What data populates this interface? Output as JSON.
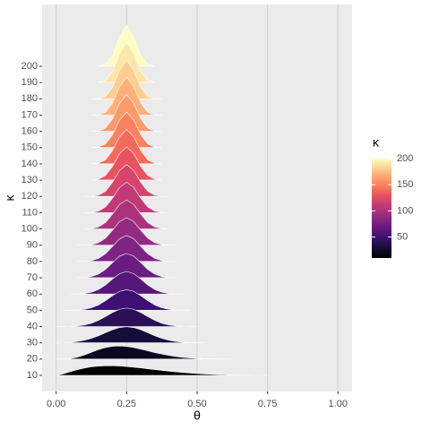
{
  "chart_data": {
    "type": "ridgeline",
    "x": [
      0,
      0.025,
      0.05,
      0.075,
      0.1,
      0.125,
      0.15,
      0.175,
      0.2,
      0.225,
      0.25,
      0.275,
      0.3,
      0.325,
      0.35,
      0.375,
      0.4,
      0.425,
      0.45,
      0.475,
      0.5,
      0.525,
      0.55,
      0.575,
      0.6,
      0.625,
      0.65,
      0.675,
      0.7,
      0.725,
      0.75,
      0.775,
      0.8,
      0.825,
      0.85
    ],
    "categories": [
      10,
      20,
      30,
      40,
      50,
      60,
      70,
      80,
      90,
      100,
      110,
      120,
      130,
      140,
      150,
      160,
      170,
      180,
      190,
      200
    ],
    "series": [
      {
        "color": "#000004",
        "values": [
          0,
          0.49,
          1.17,
          1.81,
          2.33,
          2.71,
          2.95,
          3.06,
          3.06,
          2.97,
          2.81,
          2.6,
          2.36,
          2.1,
          1.84,
          1.58,
          1.33,
          1.11,
          0.9,
          0.72,
          0.57,
          0.44,
          0.33,
          0.24,
          0.18,
          0.12,
          0.08,
          0.05,
          0.03,
          0.02,
          0.01,
          null,
          null,
          null,
          null
        ]
      },
      {
        "color": "#0a0720",
        "values": [
          0,
          0.02,
          0.18,
          0.62,
          1.33,
          2.19,
          3.02,
          3.69,
          4.09,
          4.2,
          4.05,
          3.68,
          3.19,
          2.65,
          2.09,
          1.6,
          1.17,
          0.82,
          0.55,
          0.36,
          0.22,
          0.13,
          0.07,
          0.04,
          0.02,
          0.01,
          null,
          null,
          null,
          null,
          null,
          null,
          null,
          null,
          null
        ]
      },
      {
        "color": "#150e38",
        "values": [
          0.03,
          0.08,
          0.19,
          0.41,
          0.8,
          1.41,
          2.24,
          3.22,
          4.17,
          4.87,
          5.13,
          4.87,
          4.17,
          3.22,
          2.24,
          1.41,
          0.8,
          0.41,
          0.19,
          0.08,
          0.03,
          0.01,
          null,
          null,
          null,
          null,
          null,
          null,
          null,
          null,
          null,
          null,
          null,
          null,
          null
        ]
      },
      {
        "color": "#2a1055",
        "values": [
          0.01,
          0.02,
          0.07,
          0.21,
          0.5,
          1.07,
          1.98,
          3.19,
          4.49,
          5.51,
          5.9,
          5.51,
          4.49,
          3.19,
          1.98,
          1.07,
          0.5,
          0.21,
          0.07,
          0.02,
          0.01,
          null,
          null,
          null,
          null,
          null,
          null,
          null,
          null,
          null,
          null,
          null,
          null,
          null,
          null
        ]
      },
      {
        "color": "#3e1072",
        "values": [
          null,
          0.01,
          0.03,
          0.1,
          0.31,
          0.79,
          1.69,
          3.06,
          4.68,
          6.04,
          6.58,
          6.04,
          4.68,
          3.06,
          1.69,
          0.79,
          0.31,
          0.1,
          0.03,
          0.01,
          null,
          null,
          null,
          null,
          null,
          null,
          null,
          null,
          null,
          null,
          null,
          null,
          null,
          null,
          null
        ]
      },
      {
        "color": "#551779",
        "values": [
          null,
          null,
          0.01,
          0.05,
          0.19,
          0.57,
          1.42,
          2.88,
          4.79,
          6.5,
          7.2,
          6.5,
          4.79,
          2.88,
          1.42,
          0.57,
          0.19,
          0.05,
          0.01,
          null,
          null,
          null,
          null,
          null,
          null,
          null,
          null,
          null,
          null,
          null,
          null,
          null,
          null,
          null,
          null
        ]
      },
      {
        "color": "#6a1c81",
        "values": [
          null,
          null,
          null,
          0.02,
          0.11,
          0.4,
          1.17,
          2.67,
          4.83,
          6.89,
          7.76,
          6.89,
          4.83,
          2.67,
          1.17,
          0.4,
          0.11,
          0.02,
          null,
          null,
          null,
          null,
          null,
          null,
          null,
          null,
          null,
          null,
          null,
          null,
          null,
          null,
          null,
          null,
          null
        ]
      },
      {
        "color": "#7e2482",
        "values": [
          null,
          null,
          null,
          0.01,
          0.06,
          0.28,
          0.96,
          2.46,
          4.83,
          7.24,
          8.29,
          7.24,
          4.83,
          2.46,
          0.96,
          0.28,
          0.06,
          0.01,
          null,
          null,
          null,
          null,
          null,
          null,
          null,
          null,
          null,
          null,
          null,
          null,
          null,
          null,
          null,
          null,
          null
        ]
      },
      {
        "color": "#922b80",
        "values": [
          null,
          null,
          null,
          0.01,
          0.04,
          0.2,
          0.78,
          2.24,
          4.79,
          7.55,
          8.79,
          7.55,
          4.79,
          2.24,
          0.78,
          0.2,
          0.04,
          0.01,
          null,
          null,
          null,
          null,
          null,
          null,
          null,
          null,
          null,
          null,
          null,
          null,
          null,
          null,
          null,
          null,
          null
        ]
      },
      {
        "color": "#ab337c",
        "values": [
          null,
          null,
          null,
          null,
          0.02,
          0.14,
          0.63,
          2.04,
          4.72,
          7.83,
          9.26,
          7.83,
          4.72,
          2.04,
          0.63,
          0.14,
          0.02,
          null,
          null,
          null,
          null,
          null,
          null,
          null,
          null,
          null,
          null,
          null,
          null,
          null,
          null,
          null,
          null,
          null,
          null
        ]
      },
      {
        "color": "#c03a76",
        "values": [
          null,
          null,
          null,
          null,
          0.01,
          0.1,
          0.5,
          1.84,
          4.63,
          8.07,
          9.71,
          8.07,
          4.63,
          1.84,
          0.5,
          0.1,
          0.01,
          null,
          null,
          null,
          null,
          null,
          null,
          null,
          null,
          null,
          null,
          null,
          null,
          null,
          null,
          null,
          null,
          null,
          null
        ]
      },
      {
        "color": "#d6456c",
        "values": [
          null,
          null,
          null,
          null,
          0.01,
          0.07,
          0.4,
          1.65,
          4.52,
          8.28,
          10.13,
          8.28,
          4.52,
          1.65,
          0.4,
          0.07,
          0.01,
          null,
          null,
          null,
          null,
          null,
          null,
          null,
          null,
          null,
          null,
          null,
          null,
          null,
          null,
          null,
          null,
          null,
          null
        ]
      },
      {
        "color": "#e85362",
        "values": [
          null,
          null,
          null,
          null,
          null,
          0.05,
          0.32,
          1.48,
          4.4,
          8.47,
          10.54,
          8.47,
          4.4,
          1.48,
          0.32,
          0.05,
          null,
          null,
          null,
          null,
          null,
          null,
          null,
          null,
          null,
          null,
          null,
          null,
          null,
          null,
          null,
          null,
          null,
          null,
          null
        ]
      },
      {
        "color": "#f46b5c",
        "values": [
          null,
          null,
          null,
          null,
          null,
          0.03,
          0.25,
          1.32,
          4.27,
          8.65,
          10.94,
          8.65,
          4.27,
          1.32,
          0.25,
          0.03,
          null,
          null,
          null,
          null,
          null,
          null,
          null,
          null,
          null,
          null,
          null,
          null,
          null,
          null,
          null,
          null,
          null,
          null,
          null
        ]
      },
      {
        "color": "#fa8260",
        "values": [
          null,
          null,
          null,
          null,
          null,
          0.02,
          0.2,
          1.18,
          4.14,
          8.8,
          11.32,
          8.8,
          4.14,
          1.18,
          0.2,
          0.02,
          null,
          null,
          null,
          null,
          null,
          null,
          null,
          null,
          null,
          null,
          null,
          null,
          null,
          null,
          null,
          null,
          null,
          null,
          null
        ]
      },
      {
        "color": "#fd9a6a",
        "values": [
          null,
          null,
          null,
          null,
          null,
          0.01,
          0.16,
          1.05,
          4,
          8.94,
          11.69,
          8.94,
          4,
          1.05,
          0.16,
          0.01,
          null,
          null,
          null,
          null,
          null,
          null,
          null,
          null,
          null,
          null,
          null,
          null,
          null,
          null,
          null,
          null,
          null,
          null,
          null
        ]
      },
      {
        "color": "#feb078",
        "values": [
          null,
          null,
          null,
          null,
          null,
          0.01,
          0.13,
          0.93,
          3.85,
          9.06,
          12.05,
          9.06,
          3.85,
          0.93,
          0.13,
          0.01,
          null,
          null,
          null,
          null,
          null,
          null,
          null,
          null,
          null,
          null,
          null,
          null,
          null,
          null,
          null,
          null,
          null,
          null,
          null
        ]
      },
      {
        "color": "#fecd90",
        "values": [
          null,
          null,
          null,
          null,
          null,
          0.01,
          0.1,
          0.82,
          3.71,
          9.16,
          12.39,
          9.16,
          3.71,
          0.82,
          0.1,
          0.01,
          null,
          null,
          null,
          null,
          null,
          null,
          null,
          null,
          null,
          null,
          null,
          null,
          null,
          null,
          null,
          null,
          null,
          null,
          null
        ]
      },
      {
        "color": "#fde6a7",
        "values": [
          null,
          null,
          null,
          null,
          null,
          null,
          0.08,
          0.73,
          3.56,
          9.26,
          12.73,
          9.26,
          3.56,
          0.73,
          0.08,
          null,
          null,
          null,
          null,
          null,
          null,
          null,
          null,
          null,
          null,
          null,
          null,
          null,
          null,
          null,
          null,
          null,
          null,
          null,
          null
        ]
      },
      {
        "color": "#fcfdbf",
        "values": [
          null,
          null,
          null,
          null,
          null,
          null,
          0.06,
          0.64,
          3.42,
          9.34,
          13.06,
          9.34,
          3.42,
          0.64,
          0.06,
          null,
          null,
          null,
          null,
          null,
          null,
          null,
          null,
          null,
          null,
          null,
          null,
          null,
          null,
          null,
          null,
          null,
          null,
          null,
          null
        ]
      }
    ],
    "xlim": [
      -0.05,
      1.05
    ],
    "xticks": [
      {
        "value": 0,
        "label": "0.00"
      },
      0.25,
      {
        "value": 0.5,
        "label": "0.50"
      },
      0.75,
      {
        "value": 1,
        "label": "1.00"
      }
    ],
    "xlabel": "θ",
    "ylabel": "κ",
    "grid": true,
    "colorbar": {
      "title": "κ",
      "lim": [
        10,
        200
      ],
      "ticks": [
        50,
        100,
        150,
        200
      ]
    }
  }
}
